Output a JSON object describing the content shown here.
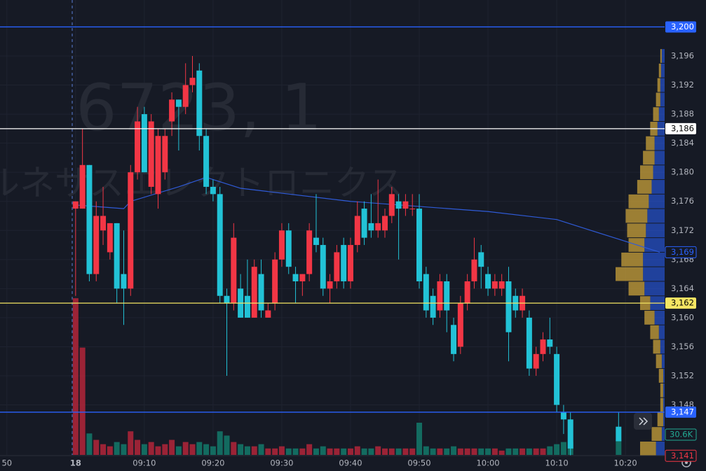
{
  "chart_data": {
    "type": "candlestick",
    "watermark": [
      "6723, 1",
      "ルネサスエレクトロニクス"
    ],
    "up_color": "#f23645",
    "down_color": "#22c2d6",
    "x": [
      0,
      1,
      2,
      3,
      4,
      5,
      6,
      7,
      8,
      9,
      10,
      11,
      12,
      13,
      14,
      15,
      16,
      17,
      18,
      19,
      20,
      21,
      22,
      23,
      24,
      25,
      26,
      27,
      28,
      29,
      30,
      31,
      32,
      33,
      34,
      35,
      36,
      37,
      38,
      39,
      40,
      41,
      42,
      43,
      44,
      45,
      46,
      47,
      48,
      49,
      50,
      51,
      52,
      53,
      54,
      55,
      56,
      57,
      58,
      59,
      60,
      61,
      62,
      63,
      64,
      65,
      66,
      67,
      68,
      69,
      70,
      71,
      72,
      79
    ],
    "open": [
      3175,
      3175,
      3181,
      3166,
      3172,
      3169,
      3173,
      3166,
      3164,
      3180,
      3188,
      3178,
      3177,
      3180,
      3187,
      3190,
      3189,
      3192,
      3194,
      3185,
      3178,
      3177,
      3163,
      3162,
      3164,
      3163,
      3160,
      3166,
      3160,
      3162,
      3168,
      3172,
      3166,
      3165,
      3166,
      3171,
      3170,
      3164,
      3165,
      3170,
      3165,
      3170,
      3175,
      3173,
      3172,
      3172,
      3174,
      3176,
      3175,
      3175,
      3175,
      3166,
      3163,
      3161,
      3165,
      3159,
      3156,
      3162,
      3165,
      3169,
      3166,
      3164,
      3164,
      3165,
      3163,
      3161,
      3160,
      3153,
      3155,
      3157,
      3155,
      3147,
      3146,
      3145
    ],
    "high": [
      3176,
      3186,
      3181,
      3176,
      3178,
      3173,
      3173,
      3172,
      3181,
      3189,
      3189,
      3188,
      3186,
      3186,
      3191,
      3190,
      3195,
      3196,
      3195,
      3186,
      3179,
      3178,
      3164,
      3173,
      3166,
      3168,
      3168,
      3168,
      3162,
      3169,
      3173,
      3173,
      3167,
      3166,
      3173,
      3177,
      3171,
      3166,
      3170,
      3171,
      3171,
      3176,
      3176,
      3177,
      3179,
      3175,
      3178,
      3177,
      3177,
      3177,
      3177,
      3167,
      3164,
      3166,
      3166,
      3160,
      3163,
      3166,
      3171,
      3170,
      3167,
      3166,
      3166,
      3167,
      3164,
      3164,
      3161,
      3156,
      3158,
      3160,
      3156,
      3148,
      3147,
      3147
    ],
    "low": [
      3163,
      3175,
      3165,
      3165,
      3170,
      3168,
      3162,
      3159,
      3163,
      3179,
      3180,
      3177,
      3175,
      3179,
      3185,
      3183,
      3188,
      3191,
      3183,
      3177,
      3176,
      3162,
      3152,
      3161,
      3160,
      3160,
      3160,
      3160,
      3160,
      3161,
      3167,
      3166,
      3162,
      3163,
      3165,
      3169,
      3163,
      3162,
      3164,
      3164,
      3164,
      3169,
      3170,
      3171,
      3171,
      3171,
      3173,
      3168,
      3174,
      3174,
      3164,
      3160,
      3159,
      3160,
      3158,
      3154,
      3155,
      3161,
      3164,
      3164,
      3163,
      3163,
      3163,
      3154,
      3160,
      3160,
      3152,
      3152,
      3154,
      3155,
      3147,
      3144,
      3141,
      3143
    ],
    "close": [
      3176,
      3181,
      3166,
      3174,
      3174,
      3173,
      3164,
      3164,
      3180,
      3187,
      3180,
      3187,
      3185,
      3185,
      3190,
      3189,
      3192,
      3193,
      3185,
      3178,
      3177,
      3163,
      3162,
      3171,
      3160,
      3160,
      3167,
      3161,
      3161,
      3168,
      3172,
      3167,
      3165,
      3166,
      3172,
      3170,
      3164,
      3165,
      3169,
      3165,
      3170,
      3174,
      3171,
      3172,
      3173,
      3174,
      3177,
      3175,
      3176,
      3175,
      3165,
      3161,
      3160,
      3165,
      3161,
      3155,
      3162,
      3165,
      3168,
      3167,
      3164,
      3165,
      3165,
      3158,
      3161,
      3163,
      3153,
      3155,
      3157,
      3156,
      3148,
      3146,
      3142,
      3143
    ],
    "volume": [
      146000,
      100000,
      20000,
      14000,
      10000,
      8000,
      12000,
      10000,
      22000,
      14000,
      10000,
      12000,
      8000,
      10000,
      14000,
      8000,
      12000,
      10000,
      12000,
      10000,
      8000,
      22000,
      18000,
      12000,
      10000,
      8000,
      8000,
      10000,
      6000,
      6000,
      8000,
      6000,
      6000,
      6000,
      10000,
      6000,
      8000,
      6000,
      6000,
      6000,
      6000,
      8000,
      6000,
      6000,
      8000,
      6000,
      6000,
      6000,
      6000,
      6000,
      30000,
      8000,
      6000,
      6000,
      6000,
      8000,
      6000,
      6000,
      6000,
      6000,
      6000,
      6000,
      4000,
      6000,
      6000,
      6000,
      6000,
      6000,
      6000,
      8000,
      10000,
      12000,
      12000,
      14000
    ],
    "volume_ylim": [
      0,
      150000
    ],
    "vwap": {
      "x": [
        0,
        7,
        8,
        15,
        19,
        24,
        40,
        60,
        70,
        75,
        80,
        85
      ],
      "values": [
        3175.5,
        3175,
        3176,
        3178,
        3179.3,
        3177.8,
        3176,
        3174.6,
        3173.5,
        3172,
        3170.5,
        3169
      ]
    },
    "profile": {
      "levels": [
        3196,
        3194,
        3192,
        3190,
        3188,
        3186,
        3184,
        3182,
        3180,
        3178,
        3176,
        3174,
        3172,
        3170,
        3168,
        3166,
        3164,
        3162,
        3160,
        3158,
        3156,
        3154,
        3152,
        3150,
        3148,
        3146,
        3144,
        3142
      ],
      "up": [
        4,
        5,
        6,
        6,
        8,
        10,
        14,
        14,
        16,
        18,
        22,
        24,
        26,
        28,
        30,
        30,
        28,
        20,
        14,
        8,
        6,
        4,
        2,
        2,
        2,
        2,
        4,
        12
      ],
      "down": [
        2,
        3,
        4,
        6,
        8,
        10,
        12,
        16,
        18,
        20,
        28,
        30,
        26,
        22,
        30,
        38,
        22,
        14,
        14,
        12,
        10,
        8,
        6,
        4,
        4,
        8,
        14,
        22
      ]
    },
    "xlim": [
      -11,
      85.7
    ],
    "ylim": [
      3142,
      3196
    ],
    "xticks": [
      {
        "value": -10,
        "label": "50"
      },
      {
        "value": 0,
        "label": "18"
      },
      {
        "value": 10,
        "label": "09:10"
      },
      {
        "value": 20,
        "label": "09:20"
      },
      {
        "value": 30,
        "label": "09:30"
      },
      {
        "value": 40,
        "label": "09:40"
      },
      {
        "value": 50,
        "label": "09:50"
      },
      {
        "value": 60,
        "label": "10:00"
      },
      {
        "value": 70,
        "label": "10:10"
      },
      {
        "value": 80,
        "label": "10:20"
      }
    ],
    "yticks": [
      {
        "value": 3196,
        "label": "3,196"
      },
      {
        "value": 3192,
        "label": "3,192"
      },
      {
        "value": 3188,
        "label": "3,188"
      },
      {
        "value": 3184,
        "label": "3,184"
      },
      {
        "value": 3180,
        "label": "3,180"
      },
      {
        "value": 3176,
        "label": "3,176"
      },
      {
        "value": 3172,
        "label": "3,172"
      },
      {
        "value": 3168,
        "label": "3,168"
      },
      {
        "value": 3164,
        "label": "3,164"
      },
      {
        "value": 3160,
        "label": "3,160"
      },
      {
        "value": 3156,
        "label": "3,156"
      },
      {
        "value": 3152,
        "label": "3,152"
      },
      {
        "value": 3148,
        "label": "3,148"
      }
    ],
    "hlines": [
      {
        "value": 3200,
        "label": "3,200",
        "color": "#2962ff"
      },
      {
        "value": 3186,
        "label": "3,186",
        "color": "#ffffff"
      },
      {
        "value": 3162,
        "label": "3,162",
        "color": "#f5e663"
      },
      {
        "value": 3147,
        "label": "3,147",
        "color": "#2962ff"
      }
    ],
    "price_tags": [
      {
        "value": 3169,
        "label": "3,169",
        "color": "#2962ff"
      },
      {
        "value": 3141,
        "label": "3,141",
        "color": "#f23645"
      }
    ],
    "volume_tag": "30.6K"
  }
}
